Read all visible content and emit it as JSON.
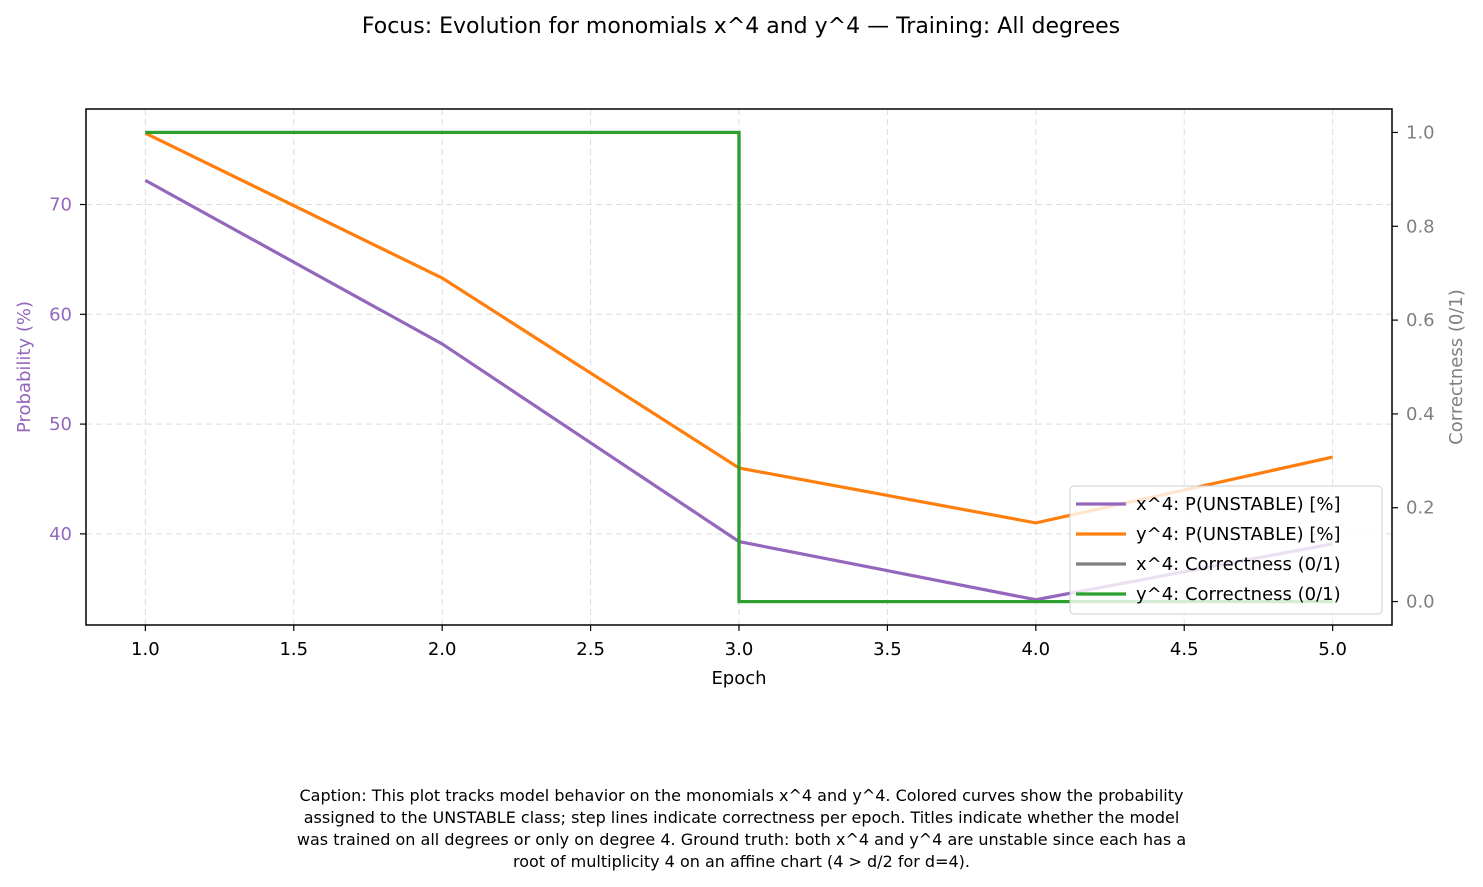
{
  "chart_data": {
    "type": "line",
    "title": "Focus: Evolution for monomials x^4 and y^4 — Training: All degrees",
    "xlabel": "Epoch",
    "ylabel_left": "Probability (%)",
    "ylabel_right": "Correctness (0/1)",
    "x": [
      1,
      2,
      3,
      4,
      5
    ],
    "xlim": [
      0.8,
      5.2
    ],
    "ylim_left": [
      31.7,
      78.7
    ],
    "ylim_right": [
      -0.05,
      1.05
    ],
    "x_ticks": [
      "1.0",
      "1.5",
      "2.0",
      "2.5",
      "3.0",
      "3.5",
      "4.0",
      "4.5",
      "5.0"
    ],
    "y_ticks_left": [
      "40",
      "50",
      "60",
      "70"
    ],
    "y_ticks_right": [
      "0.0",
      "0.2",
      "0.4",
      "0.6",
      "0.8",
      "1.0"
    ],
    "grid": true,
    "legend_position": "lower-right",
    "series": [
      {
        "name": "x^4: P(UNSTABLE) [%]",
        "axis": "left",
        "style": "line",
        "color": "#9467bd",
        "values": [
          72.2,
          57.3,
          39.3,
          34.0,
          39.1
        ]
      },
      {
        "name": "y^4: P(UNSTABLE) [%]",
        "axis": "left",
        "style": "line",
        "color": "#ff7f0e",
        "values": [
          76.5,
          63.3,
          46.0,
          41.0,
          47.0
        ]
      },
      {
        "name": "x^4: Correctness (0/1)",
        "axis": "right",
        "style": "step",
        "color": "#7f7f7f",
        "values": [
          1,
          1,
          0,
          0,
          0
        ]
      },
      {
        "name": "y^4: Correctness (0/1)",
        "axis": "right",
        "style": "step",
        "color": "#2ca02c",
        "values": [
          1,
          1,
          0,
          0,
          0
        ]
      }
    ],
    "left_axis_color": "#9467bd",
    "right_axis_color": "#808080"
  },
  "caption": {
    "lines": [
      "Caption: This plot tracks model behavior on the monomials x^4 and y^4. Colored curves show the probability",
      "assigned to the UNSTABLE class; step lines indicate correctness per epoch. Titles indicate whether the model",
      "was trained on all degrees or only on degree 4. Ground truth: both x^4 and y^4 are unstable since each has a",
      "root of multiplicity 4 on an affine chart (4 > d/2 for d=4)."
    ]
  }
}
